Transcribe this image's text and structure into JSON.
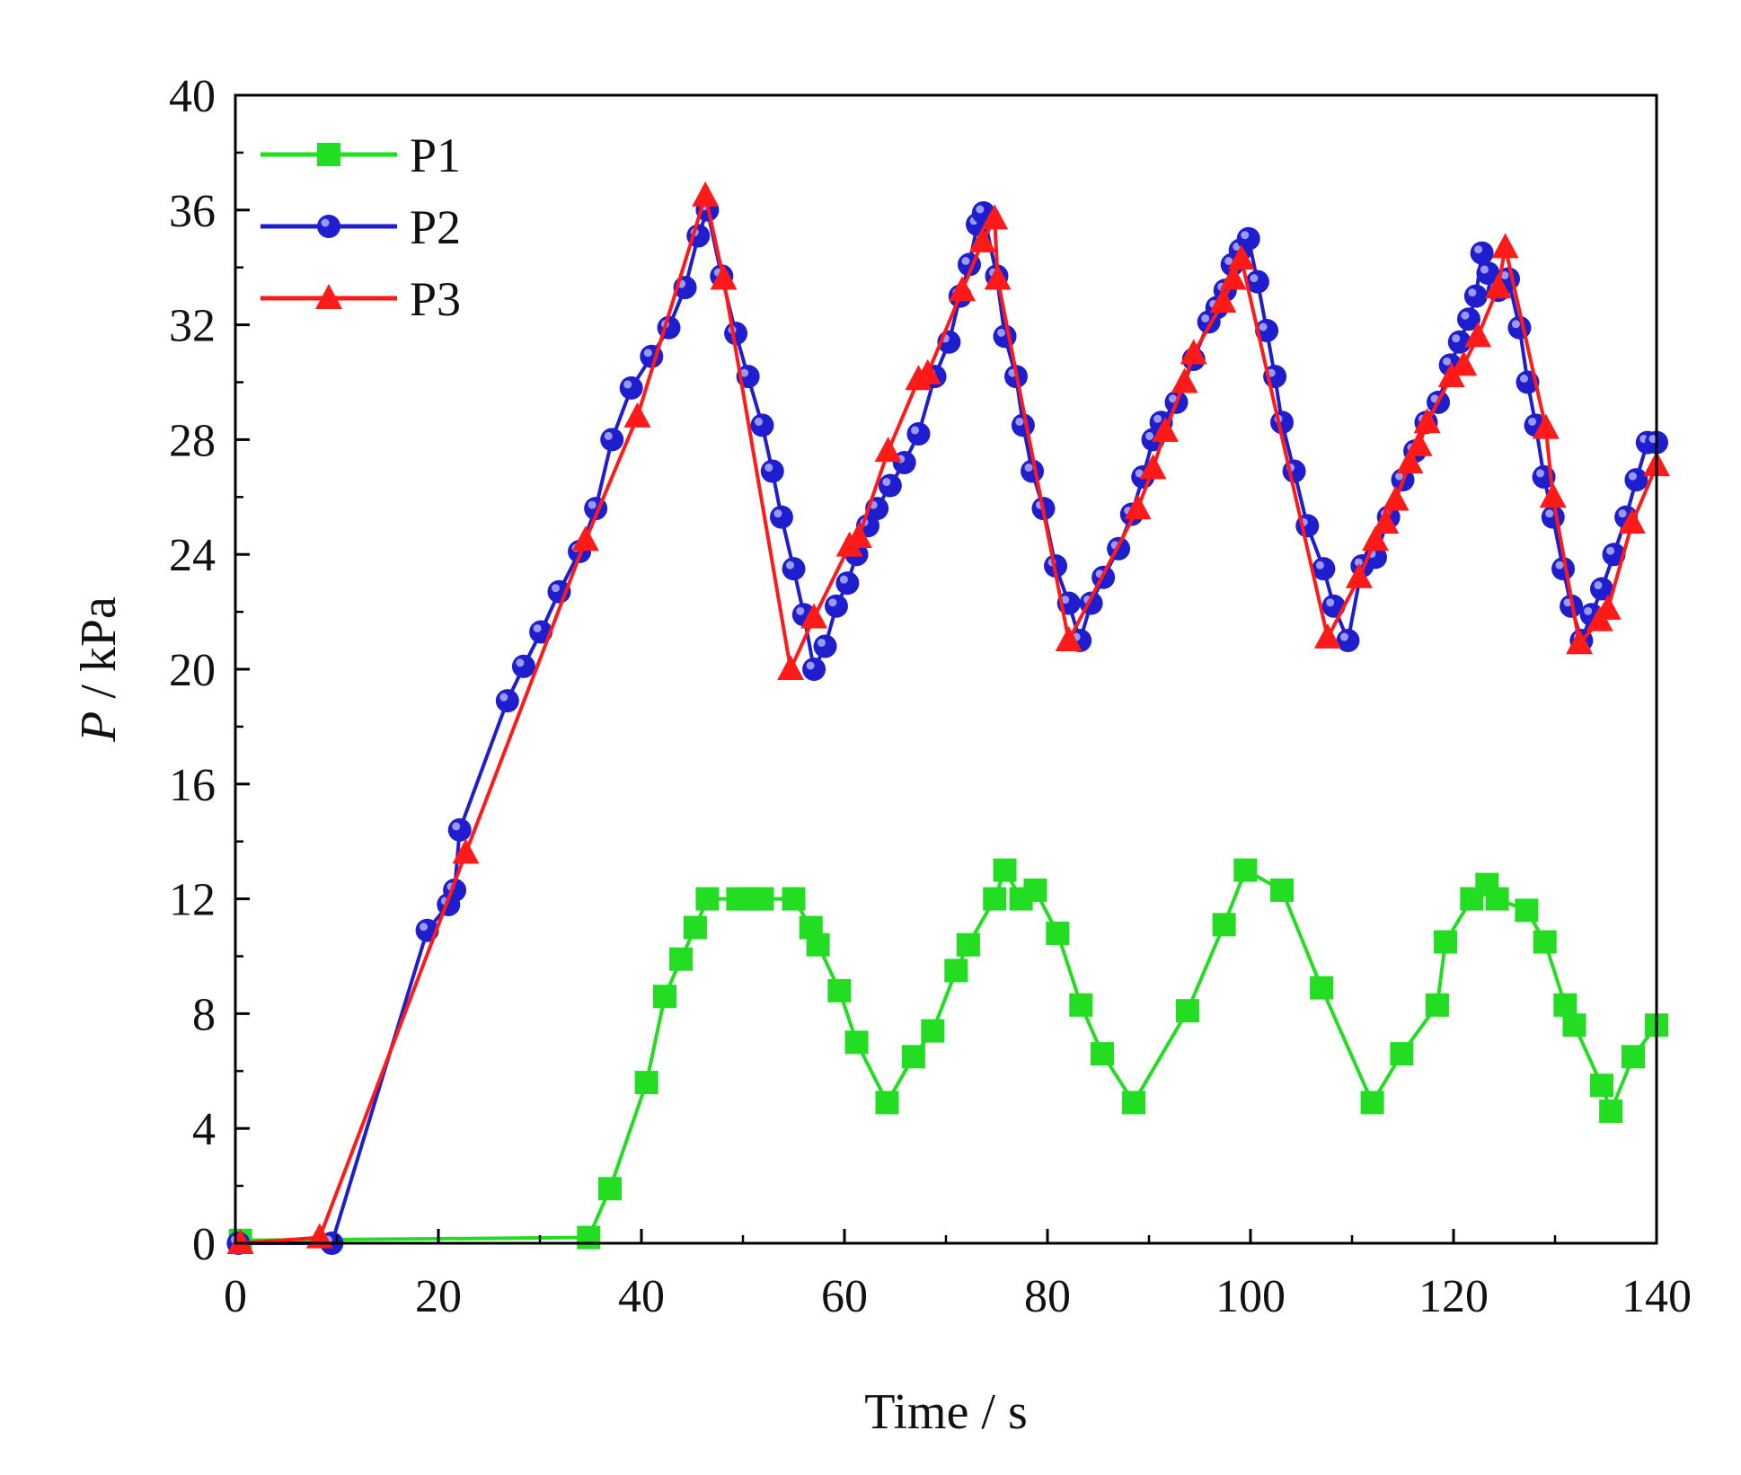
{
  "chart_data": {
    "type": "line",
    "title": "",
    "xlabel": "Time / s",
    "ylabel_var": "P",
    "ylabel_unit": " / kPa",
    "xlim": [
      0,
      140
    ],
    "ylim": [
      0,
      40
    ],
    "xticks": [
      0,
      20,
      40,
      60,
      80,
      100,
      120,
      140
    ],
    "yticks": [
      0,
      4,
      8,
      12,
      16,
      20,
      24,
      28,
      32,
      36,
      40
    ],
    "grid": false,
    "legend_position": "top-left",
    "series": [
      {
        "name": "P1",
        "color": "#22dd22",
        "marker": "square",
        "x": [
          0.5,
          34.8,
          36.9,
          40.5,
          42.3,
          43.9,
          45.3,
          46.5,
          49.5,
          50.7,
          51.9,
          55.0,
          56.7,
          57.4,
          59.5,
          61.2,
          64.2,
          66.8,
          68.7,
          71.0,
          72.2,
          74.8,
          75.8,
          77.4,
          78.8,
          81.0,
          83.3,
          85.4,
          88.5,
          93.8,
          97.4,
          99.5,
          103.1,
          107.0,
          112.0,
          114.9,
          118.4,
          119.2,
          121.8,
          123.3,
          124.3,
          127.2,
          129.0,
          131.0,
          131.9,
          134.6,
          135.5,
          137.7,
          140.0
        ],
        "values": [
          0.1,
          0.2,
          1.9,
          5.6,
          8.6,
          9.9,
          11.0,
          12.0,
          12.0,
          12.0,
          12.0,
          12.0,
          11.0,
          10.4,
          8.8,
          7.0,
          4.9,
          6.5,
          7.4,
          9.5,
          10.4,
          12.0,
          13.0,
          12.0,
          12.3,
          10.8,
          8.3,
          6.6,
          4.9,
          8.1,
          11.1,
          13.0,
          12.3,
          8.9,
          4.9,
          6.6,
          8.3,
          10.5,
          12.0,
          12.5,
          12.0,
          11.6,
          10.5,
          8.3,
          7.6,
          5.5,
          4.6,
          6.5,
          7.6
        ]
      },
      {
        "name": "P2",
        "color": "#1e1ecf",
        "marker": "circle",
        "x": [
          0.3,
          9.5,
          18.9,
          21.0,
          21.6,
          22.1,
          26.8,
          28.4,
          30.1,
          31.9,
          33.9,
          35.5,
          37.1,
          39.0,
          41.0,
          42.7,
          44.3,
          45.6,
          46.5,
          47.9,
          49.3,
          50.5,
          51.9,
          52.9,
          53.8,
          55.0,
          56.0,
          57.0,
          58.1,
          59.2,
          60.3,
          61.2,
          62.3,
          63.2,
          64.5,
          65.9,
          67.3,
          68.9,
          70.3,
          71.4,
          72.3,
          73.1,
          73.7,
          75.0,
          75.8,
          76.9,
          77.6,
          78.5,
          79.6,
          80.8,
          82.1,
          83.2,
          84.3,
          85.5,
          87.0,
          88.3,
          89.4,
          90.4,
          91.2,
          92.7,
          94.4,
          95.9,
          96.7,
          97.5,
          98.2,
          99.0,
          99.8,
          100.7,
          101.6,
          102.4,
          103.1,
          104.3,
          105.6,
          107.2,
          108.2,
          109.6,
          111.0,
          112.3,
          113.6,
          115.0,
          116.2,
          117.3,
          118.5,
          119.7,
          120.6,
          121.5,
          122.2,
          122.8,
          123.4,
          124.4,
          125.4,
          126.5,
          127.3,
          128.1,
          128.9,
          129.8,
          130.8,
          131.6,
          132.6,
          133.6,
          134.6,
          135.8,
          137.0,
          138.0,
          139.1,
          140.0
        ],
        "values": [
          0.0,
          0.0,
          10.9,
          11.8,
          12.3,
          14.4,
          18.9,
          20.1,
          21.3,
          22.7,
          24.1,
          25.6,
          28.0,
          29.8,
          30.9,
          31.9,
          33.3,
          35.1,
          36.0,
          33.7,
          31.7,
          30.2,
          28.5,
          26.9,
          25.3,
          23.5,
          21.9,
          20.0,
          20.8,
          22.2,
          23.0,
          24.0,
          25.0,
          25.6,
          26.4,
          27.2,
          28.2,
          30.2,
          31.4,
          33.0,
          34.1,
          35.5,
          35.9,
          33.7,
          31.6,
          30.2,
          28.5,
          26.9,
          25.6,
          23.6,
          22.3,
          21.0,
          22.3,
          23.2,
          24.2,
          25.4,
          26.7,
          28.0,
          28.6,
          29.3,
          30.8,
          32.1,
          32.6,
          33.2,
          34.1,
          34.6,
          35.0,
          33.5,
          31.8,
          30.2,
          28.6,
          26.9,
          25.0,
          23.5,
          22.2,
          21.0,
          23.6,
          23.9,
          25.3,
          26.6,
          27.6,
          28.6,
          29.3,
          30.6,
          31.4,
          32.2,
          33.0,
          34.5,
          33.8,
          33.2,
          33.6,
          31.9,
          30.0,
          28.5,
          26.7,
          25.3,
          23.5,
          22.2,
          21.0,
          21.9,
          22.8,
          24.0,
          25.3,
          26.6,
          27.9,
          27.9
        ]
      },
      {
        "name": "P3",
        "color": "#ff1a1a",
        "marker": "triangle",
        "x": [
          0.5,
          8.3,
          22.7,
          34.5,
          39.6,
          46.3,
          48.1,
          54.7,
          57.0,
          60.5,
          61.4,
          64.3,
          67.3,
          68.2,
          71.6,
          73.6,
          74.8,
          75.1,
          82.1,
          88.9,
          90.4,
          91.6,
          93.5,
          94.4,
          97.3,
          98.3,
          99.1,
          107.6,
          110.7,
          112.3,
          113.3,
          114.3,
          115.7,
          116.6,
          117.4,
          119.8,
          121.0,
          122.4,
          124.4,
          125.1,
          129.1,
          129.8,
          132.4,
          134.4,
          135.2,
          137.6,
          140.0
        ],
        "values": [
          0.0,
          0.2,
          13.6,
          24.5,
          28.8,
          36.5,
          33.6,
          20.0,
          21.8,
          24.3,
          24.6,
          27.6,
          30.1,
          30.3,
          33.2,
          34.9,
          35.7,
          33.6,
          21.0,
          25.6,
          27.0,
          28.3,
          30.0,
          31.0,
          32.8,
          33.6,
          34.3,
          21.1,
          23.2,
          24.5,
          25.1,
          25.9,
          27.2,
          27.8,
          28.6,
          30.2,
          30.6,
          31.6,
          33.3,
          34.7,
          28.4,
          26.0,
          20.9,
          21.7,
          22.1,
          25.1,
          27.1
        ]
      }
    ]
  }
}
